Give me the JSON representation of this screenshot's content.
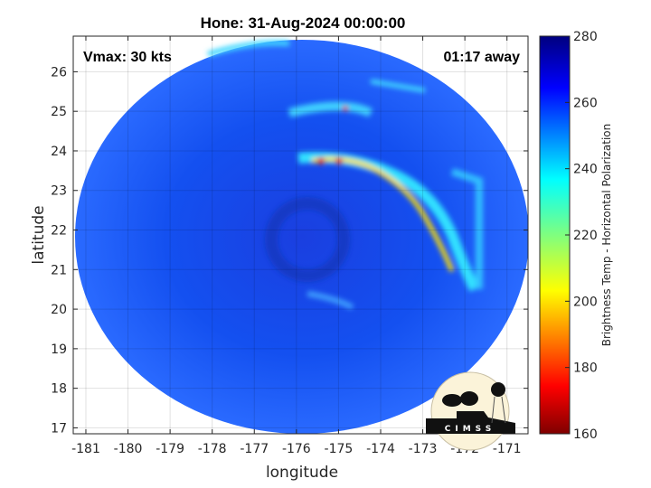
{
  "chart_data": {
    "type": "heatmap",
    "title": "Hone: 31-Aug-2024 00:00:00",
    "xlabel": "longitude",
    "ylabel": "latitude",
    "xlim": [
      -181.3,
      -170.5
    ],
    "ylim": [
      16.85,
      26.9
    ],
    "xticks": [
      "-181",
      "-180",
      "-179",
      "-178",
      "-177",
      "-176",
      "-175",
      "-174",
      "-173",
      "-172",
      "-171"
    ],
    "yticks": [
      "17",
      "18",
      "19",
      "20",
      "21",
      "22",
      "23",
      "24",
      "25",
      "26"
    ],
    "grid": true,
    "annotations": {
      "vmax": "Vmax: 30 kts",
      "time_away": "01:17 away"
    },
    "colorbar": {
      "label": "Brightness Temp - Horizontal Polarization",
      "range": [
        160,
        280
      ],
      "ticks": [
        "160",
        "180",
        "200",
        "220",
        "240",
        "260",
        "280"
      ],
      "colormap": "jet"
    },
    "storm_center": {
      "lon": -175.8,
      "lat": 21.9
    },
    "logo": "CIMSS"
  }
}
